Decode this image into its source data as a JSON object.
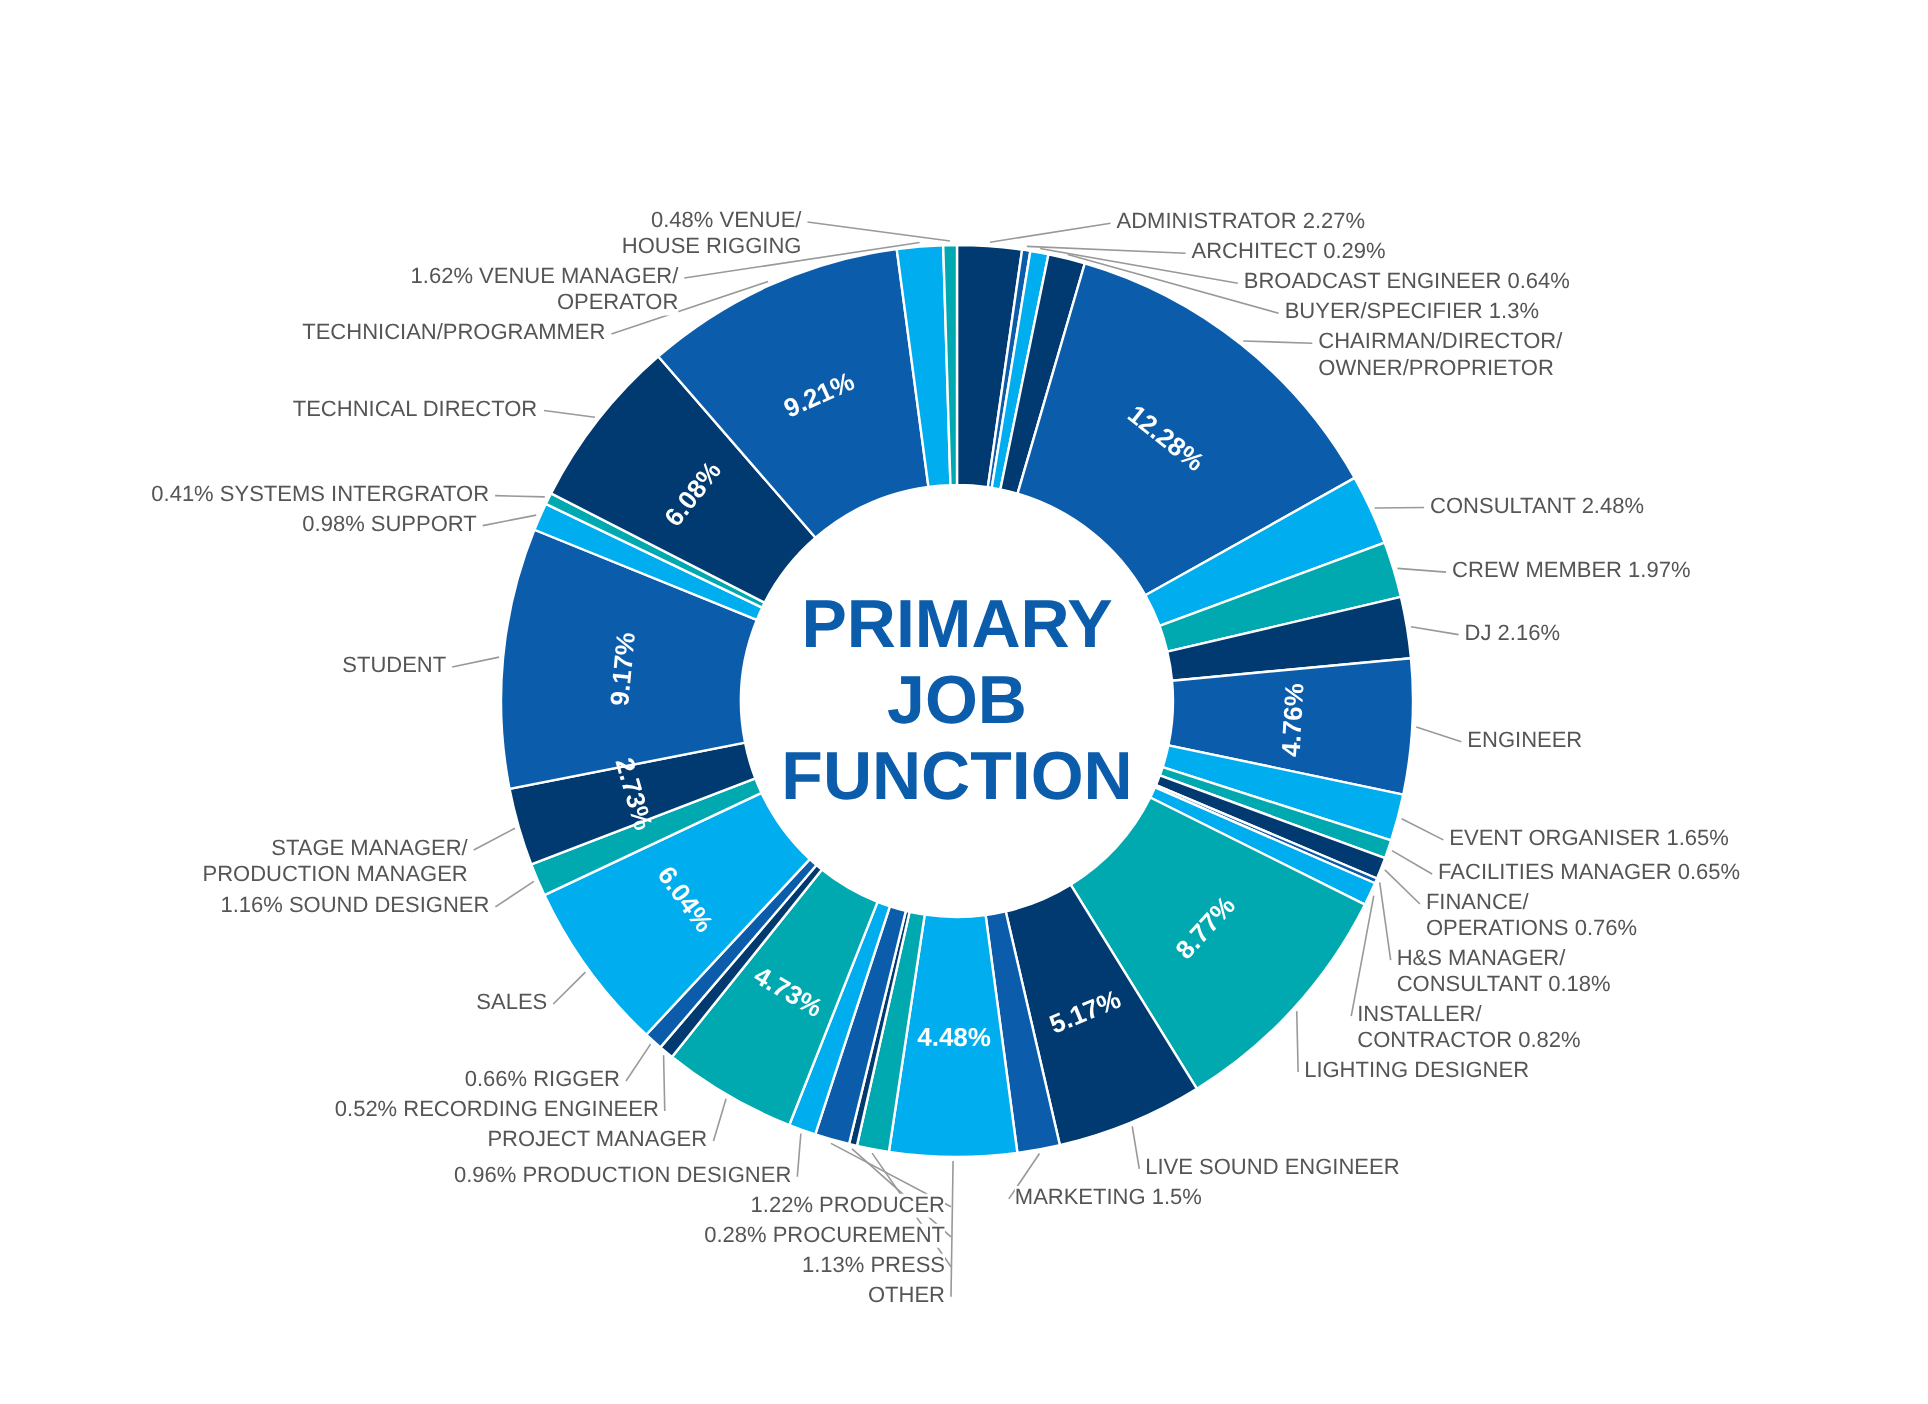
{
  "chart_data": {
    "type": "donut",
    "title": "PRIMARY JOB FUNCTION",
    "categories": [
      "ADMINISTRATOR",
      "ARCHITECT",
      "BROADCAST ENGINEER",
      "BUYER/SPECIFIER",
      "CHAIRMAN/DIRECTOR/OWNER/PROPRIETOR",
      "CONSULTANT",
      "CREW MEMBER",
      "DJ",
      "ENGINEER",
      "EVENT ORGANISER",
      "FACILITIES MANAGER",
      "FINANCE/OPERATIONS",
      "H&S MANAGER/CONSULTANT",
      "INSTALLER/CONTRACTOR",
      "LIGHTING DESIGNER",
      "LIVE SOUND ENGINEER",
      "MARKETING",
      "OTHER",
      "PRESS",
      "PROCUREMENT",
      "PRODUCER",
      "PRODUCTION DESIGNER",
      "PROJECT MANAGER",
      "RECORDING ENGINEER",
      "RIGGER",
      "SALES",
      "SOUND DESIGNER",
      "STAGE MANAGER/PRODUCTION MANAGER",
      "STUDENT",
      "SUPPORT",
      "SYSTEMS INTERGRATOR",
      "TECHNICAL DIRECTOR",
      "TECHNICIAN/PROGRAMMER",
      "VENUE MANAGER/OPERATOR",
      "VENUE/HOUSE RIGGING"
    ],
    "values": [
      2.27,
      0.29,
      0.64,
      1.3,
      12.28,
      2.48,
      1.97,
      2.16,
      4.76,
      1.65,
      0.65,
      0.76,
      0.18,
      0.82,
      8.77,
      5.17,
      1.5,
      4.48,
      1.13,
      0.28,
      1.22,
      0.96,
      4.73,
      0.52,
      0.66,
      6.04,
      1.16,
      2.73,
      9.17,
      0.98,
      0.41,
      6.08,
      9.21,
      1.62,
      0.48
    ],
    "value_labels": [
      "2.27%",
      "0.29%",
      "0.64%",
      "1.3%",
      "12.28%",
      "2.48%",
      "1.97%",
      "2.16%",
      "4.76%",
      "1.65%",
      "0.65%",
      "0.76%",
      "0.18%",
      "0.82%",
      "8.77%",
      "5.17%",
      "1.5%",
      "4.48%",
      "1.13%",
      "0.28%",
      "1.22%",
      "0.96%",
      "4.73%",
      "0.52%",
      "0.66%",
      "6.04%",
      "1.16%",
      "2.73%",
      "9.17%",
      "0.98%",
      "0.41%",
      "6.08%",
      "9.21%",
      "1.62%",
      "0.48%"
    ],
    "colors": [
      "#003a70",
      "#0b5cab",
      "#00aeef",
      "#003a70",
      "#0b5cab",
      "#00aeef",
      "#00a9b0",
      "#003a70",
      "#0b5cab",
      "#00aeef",
      "#00a9b0",
      "#003a70",
      "#0b5cab",
      "#00aeef",
      "#00a9b0",
      "#003a70",
      "#0b5cab",
      "#00aeef",
      "#00a9b0",
      "#003a70",
      "#0b5cab",
      "#00aeef",
      "#00a9b0",
      "#003a70",
      "#0b5cab",
      "#00aeef",
      "#00a9b0",
      "#003a70",
      "#0b5cab",
      "#00aeef",
      "#00a9b0",
      "#003a70",
      "#0b5cab",
      "#00aeef",
      "#00a9b0"
    ]
  }
}
